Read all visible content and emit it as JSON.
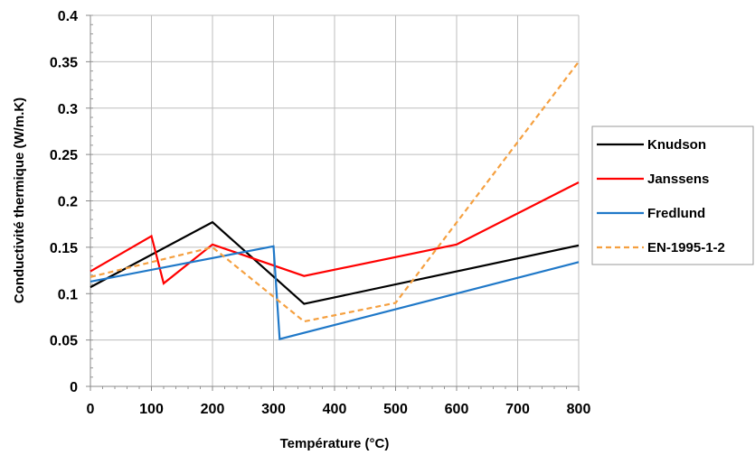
{
  "chart_data": {
    "type": "line",
    "title": "",
    "xlabel": "Température (°C)",
    "ylabel": "Conductivité thermique (W/m.K)",
    "xlim": [
      0,
      800
    ],
    "ylim": [
      0,
      0.4
    ],
    "x_ticks": [
      "0",
      "100",
      "200",
      "300",
      "400",
      "500",
      "600",
      "700",
      "800"
    ],
    "y_ticks": [
      "0",
      "0.05",
      "0.1",
      "0.15",
      "0.2",
      "0.25",
      "0.3",
      "0.35",
      "0.4"
    ],
    "grid": "vertical and horizontal major gridlines",
    "legend_position": "right",
    "series": [
      {
        "name": "Knudson",
        "color": "#000000",
        "dash": "solid",
        "points": [
          [
            0,
            0.107
          ],
          [
            200,
            0.177
          ],
          [
            350,
            0.089
          ],
          [
            800,
            0.152
          ]
        ]
      },
      {
        "name": "Janssens",
        "color": "#ff0000",
        "dash": "solid",
        "points": [
          [
            0,
            0.124
          ],
          [
            100,
            0.162
          ],
          [
            120,
            0.111
          ],
          [
            200,
            0.153
          ],
          [
            350,
            0.119
          ],
          [
            600,
            0.153
          ],
          [
            800,
            0.22
          ]
        ]
      },
      {
        "name": "Fredlund",
        "color": "#1f78c8",
        "dash": "solid",
        "points": [
          [
            0,
            0.113
          ],
          [
            300,
            0.151
          ],
          [
            310,
            0.051
          ],
          [
            800,
            0.134
          ]
        ]
      },
      {
        "name": "EN-1995-1-2",
        "color": "#f5a040",
        "dash": "dashed",
        "points": [
          [
            0,
            0.118
          ],
          [
            200,
            0.15
          ],
          [
            350,
            0.07
          ],
          [
            500,
            0.09
          ],
          [
            800,
            0.35
          ]
        ]
      }
    ]
  }
}
